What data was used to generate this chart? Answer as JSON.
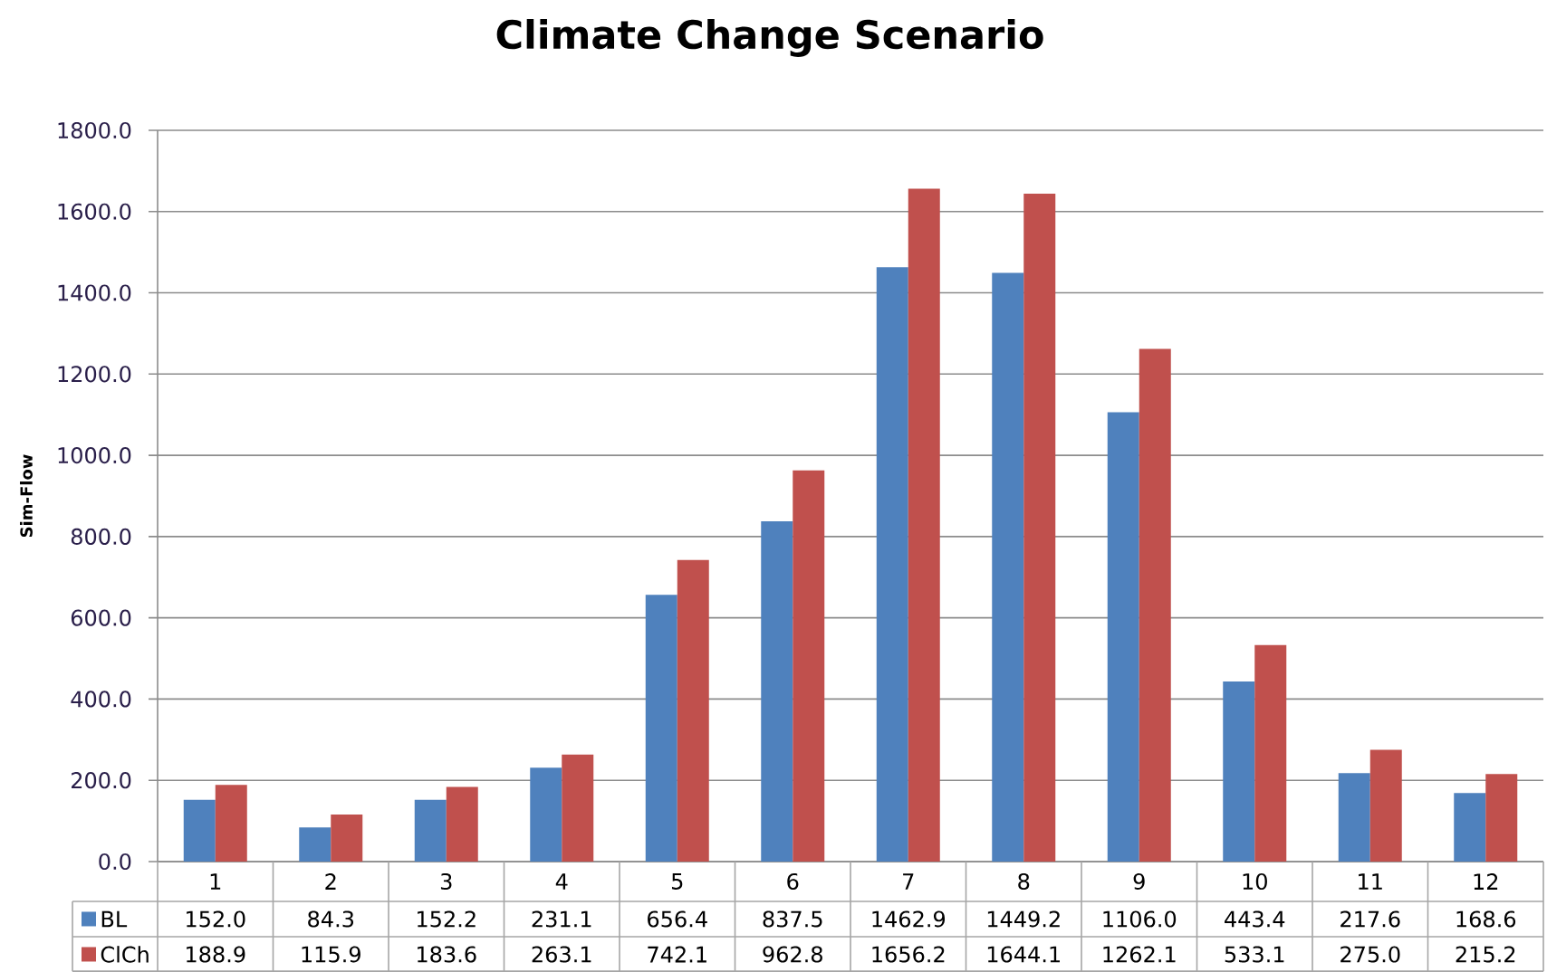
{
  "chart_data": {
    "type": "bar",
    "title": "Climate Change Scenario",
    "ylabel": "Sim-Flow",
    "categories": [
      "1",
      "2",
      "3",
      "4",
      "5",
      "6",
      "7",
      "8",
      "9",
      "10",
      "11",
      "12"
    ],
    "series": [
      {
        "name": "BL",
        "color": "#4f81bd",
        "values": [
          152.0,
          84.3,
          152.2,
          231.1,
          656.4,
          837.5,
          1462.9,
          1449.2,
          1106.0,
          443.4,
          217.6,
          168.6
        ],
        "value_labels": [
          "152.0",
          "84.3",
          "152.2",
          "231.1",
          "656.4",
          "837.5",
          "1462.9",
          "1449.2",
          "1106.0",
          "443.4",
          "217.6",
          "168.6"
        ]
      },
      {
        "name": "ClCh",
        "color": "#c0504d",
        "values": [
          188.9,
          115.9,
          183.6,
          263.1,
          742.1,
          962.8,
          1656.2,
          1644.1,
          1262.1,
          533.1,
          275.0,
          215.2
        ],
        "value_labels": [
          "188.9",
          "115.9",
          "183.6",
          "263.1",
          "742.1",
          "962.8",
          "1656.2",
          "1644.1",
          "1262.1",
          "533.1",
          "275.0",
          "215.2"
        ]
      }
    ],
    "ylim": [
      0,
      1800
    ],
    "yticks": [
      {
        "value": 0,
        "label": "0.0"
      },
      {
        "value": 200,
        "label": "200.0"
      },
      {
        "value": 400,
        "label": "400.0"
      },
      {
        "value": 600,
        "label": "600.0"
      },
      {
        "value": 800,
        "label": "800.0"
      },
      {
        "value": 1000,
        "label": "1000.0"
      },
      {
        "value": 1200,
        "label": "1200.0"
      },
      {
        "value": 1400,
        "label": "1400.0"
      },
      {
        "value": 1600,
        "label": "1600.0"
      },
      {
        "value": 1800,
        "label": "1800.0"
      }
    ],
    "grid": "y",
    "legend": "bottom"
  }
}
